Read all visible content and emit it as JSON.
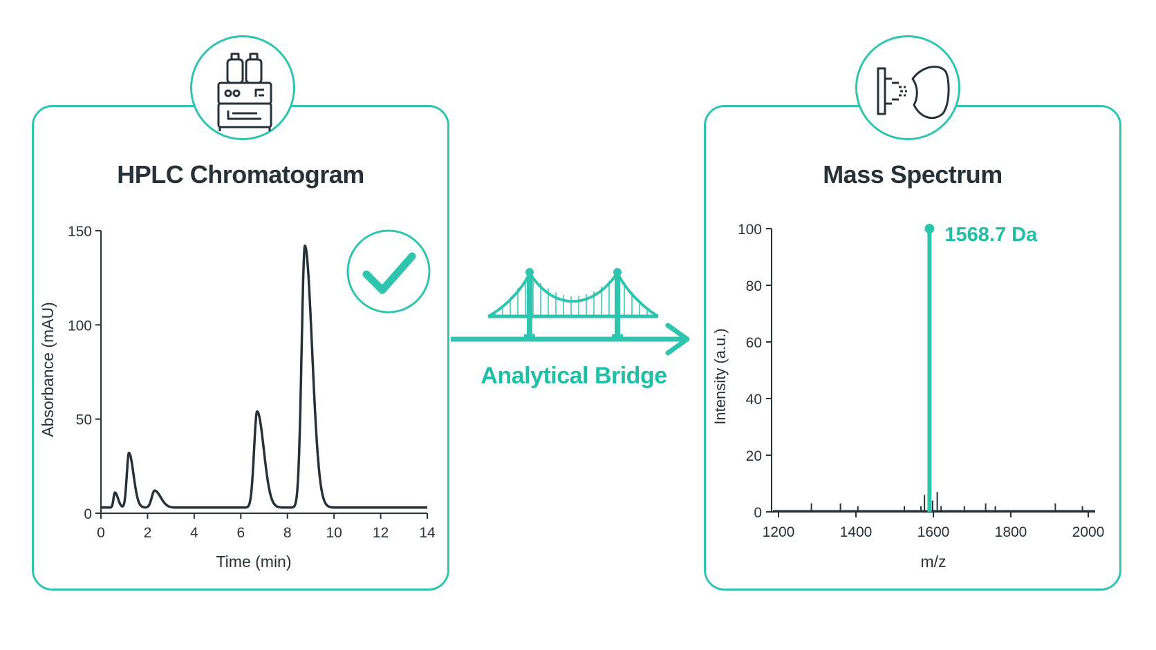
{
  "colors": {
    "accent": "#2ec4ad",
    "dark": "#263238"
  },
  "icons": {
    "hplc": "hplc-instrument-icon",
    "ms": "mass-spectrometer-icon",
    "check": "check-icon",
    "bridge": "bridge-icon",
    "arrow": "arrow-right-icon"
  },
  "bridge": {
    "label": "Analytical Bridge"
  },
  "chart_data": [
    {
      "type": "line",
      "title": "HPLC Chromatogram",
      "xlabel": "Time (min)",
      "ylabel": "Absorbance (mAU)",
      "xlim": [
        0,
        14
      ],
      "ylim": [
        0,
        150
      ],
      "xticks": [
        0,
        2,
        4,
        6,
        8,
        10,
        12,
        14
      ],
      "yticks": [
        0,
        50,
        100,
        150
      ],
      "grid": false,
      "baseline": 3,
      "peaks": [
        {
          "rt": 0.6,
          "height": 8,
          "width": 0.06
        },
        {
          "rt": 1.2,
          "height": 29,
          "width": 0.09
        },
        {
          "rt": 2.3,
          "height": 9,
          "width": 0.12
        },
        {
          "rt": 6.7,
          "height": 51,
          "width": 0.13
        },
        {
          "rt": 8.75,
          "height": 139,
          "width": 0.14
        }
      ],
      "status": "check"
    },
    {
      "type": "bar",
      "title": "Mass Spectrum",
      "xlabel": "m/z",
      "ylabel": "Intensity (a.u.)",
      "xlim": [
        1200,
        2000
      ],
      "ylim": [
        0,
        100
      ],
      "xticks": [
        1200,
        1400,
        1600,
        1800,
        2000
      ],
      "yticks": [
        0,
        20,
        40,
        60,
        80,
        100
      ],
      "grid": false,
      "main_peak": {
        "mz": 1590,
        "intensity": 100,
        "label": "1568.7 Da"
      },
      "noise_peaks": [
        {
          "mz": 1285,
          "intensity": 3
        },
        {
          "mz": 1360,
          "intensity": 3
        },
        {
          "mz": 1405,
          "intensity": 2
        },
        {
          "mz": 1525,
          "intensity": 2
        },
        {
          "mz": 1568,
          "intensity": 2
        },
        {
          "mz": 1577,
          "intensity": 6
        },
        {
          "mz": 1587,
          "intensity": 4
        },
        {
          "mz": 1598,
          "intensity": 4
        },
        {
          "mz": 1610,
          "intensity": 7
        },
        {
          "mz": 1620,
          "intensity": 2
        },
        {
          "mz": 1680,
          "intensity": 2
        },
        {
          "mz": 1735,
          "intensity": 3
        },
        {
          "mz": 1760,
          "intensity": 2
        },
        {
          "mz": 1915,
          "intensity": 3
        },
        {
          "mz": 1985,
          "intensity": 2
        }
      ]
    }
  ]
}
